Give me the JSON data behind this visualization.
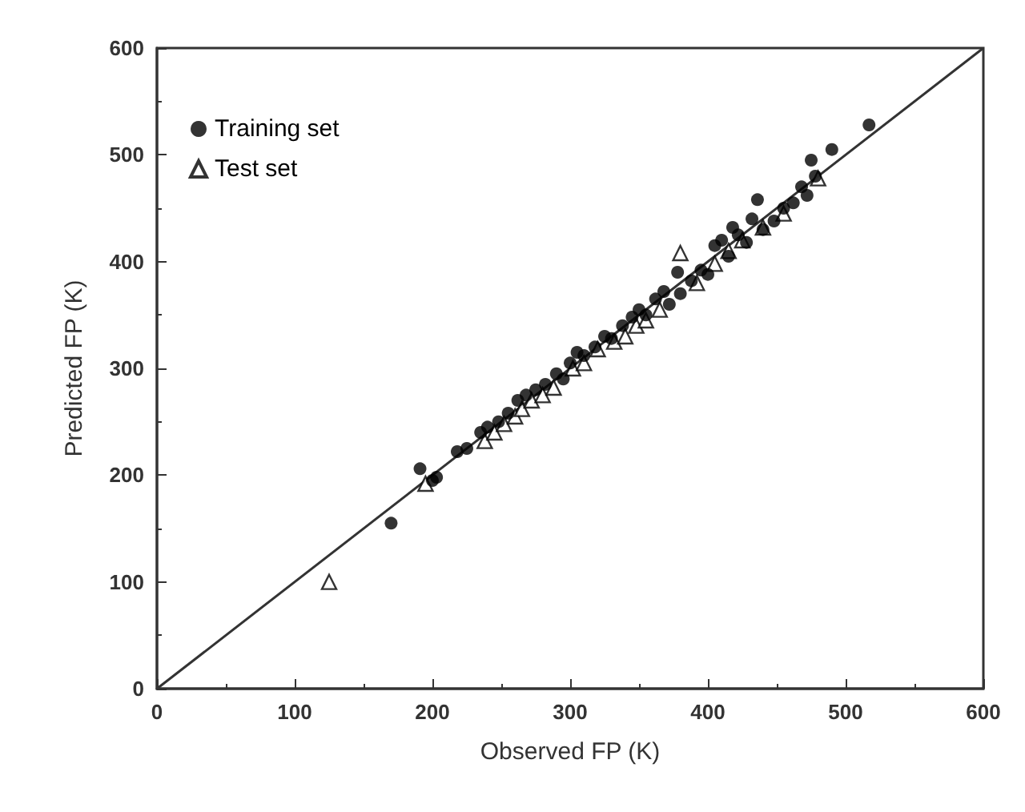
{
  "chart_data": {
    "type": "scatter",
    "xlabel": "Observed FP (K)",
    "ylabel": "Predicted FP (K)",
    "xlim": [
      0,
      600
    ],
    "ylim": [
      0,
      600
    ],
    "xticks": [
      0,
      100,
      200,
      300,
      400,
      500,
      600
    ],
    "yticks": [
      0,
      100,
      200,
      300,
      400,
      500,
      600
    ],
    "grid": false,
    "legend": "top left",
    "series": [
      {
        "name": "Training set",
        "color": "#000000",
        "marker": "circle",
        "x": [
          170,
          191,
          200,
          203,
          218,
          225,
          235,
          240,
          248,
          255,
          262,
          268,
          275,
          282,
          290,
          295,
          300,
          305,
          310,
          318,
          325,
          330,
          338,
          345,
          350,
          355,
          362,
          368,
          372,
          378,
          380,
          388,
          395,
          400,
          405,
          410,
          415,
          418,
          422,
          428,
          432,
          436,
          440,
          448,
          455,
          462,
          468,
          472,
          475,
          478,
          490,
          517
        ],
        "values": [
          155,
          206,
          195,
          198,
          222,
          225,
          240,
          245,
          250,
          258,
          270,
          275,
          280,
          285,
          295,
          290,
          305,
          315,
          312,
          320,
          330,
          328,
          340,
          348,
          355,
          350,
          365,
          372,
          360,
          390,
          370,
          382,
          392,
          388,
          415,
          420,
          405,
          432,
          425,
          418,
          440,
          458,
          430,
          438,
          450,
          455,
          470,
          462,
          495,
          480,
          505,
          528
        ]
      },
      {
        "name": "Test set",
        "color": "#000000",
        "marker": "triangle",
        "x": [
          125,
          195,
          238,
          245,
          252,
          260,
          265,
          272,
          280,
          288,
          302,
          310,
          320,
          332,
          340,
          348,
          355,
          365,
          380,
          392,
          405,
          415,
          425,
          440,
          455,
          480
        ],
        "values": [
          100,
          192,
          232,
          240,
          248,
          255,
          262,
          270,
          275,
          282,
          300,
          305,
          318,
          325,
          330,
          340,
          345,
          355,
          408,
          380,
          398,
          410,
          420,
          432,
          445,
          478
        ]
      },
      {
        "type": "line",
        "color": "#333333",
        "marker": "none",
        "line_style": "solid",
        "x": [
          0,
          600
        ],
        "values": [
          0,
          600
        ]
      }
    ]
  }
}
